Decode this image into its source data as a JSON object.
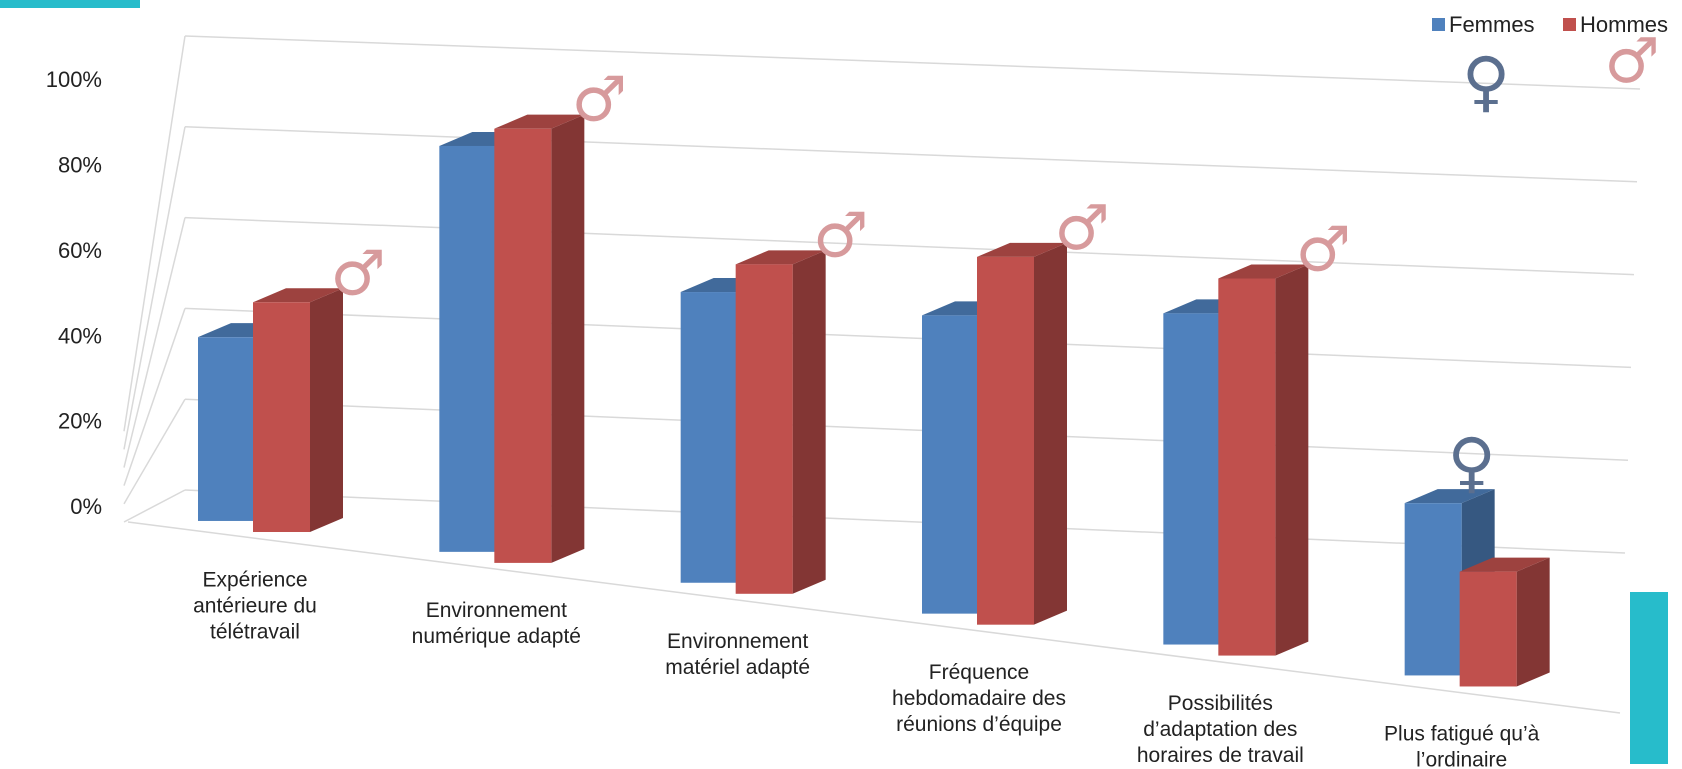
{
  "chart_data": {
    "type": "bar",
    "categories": [
      [
        "Expérience",
        "antérieure du",
        "télétravail"
      ],
      [
        "Environnement",
        "numérique adapté"
      ],
      [
        "Environnement",
        "matériel adapté"
      ],
      [
        "Fréquence",
        "hebdomadaire des",
        "réunions d’équipe"
      ],
      [
        "Possibilités",
        "d’adaptation des",
        "horaires de travail"
      ],
      [
        "Plus fatigué qu’à",
        "l’ordinaire"
      ]
    ],
    "series": [
      {
        "name": "Femmes",
        "color": "#4f81bd",
        "values": [
          40,
          86,
          60,
          60,
          65,
          33
        ]
      },
      {
        "name": "Hommes",
        "color": "#c0504d",
        "values": [
          50,
          92,
          68,
          74,
          74,
          22
        ]
      }
    ],
    "yticks": [
      "0%",
      "20%",
      "40%",
      "60%",
      "80%",
      "100%"
    ],
    "ylim": [
      0,
      100
    ],
    "legend": "top-right",
    "grid": true,
    "annotations": {
      "male_symbol": "♂",
      "female_symbol": "♀",
      "markers": [
        "male",
        "male",
        "male",
        "male",
        "male",
        "female"
      ],
      "extra_markers": [
        "female",
        "male"
      ]
    }
  }
}
